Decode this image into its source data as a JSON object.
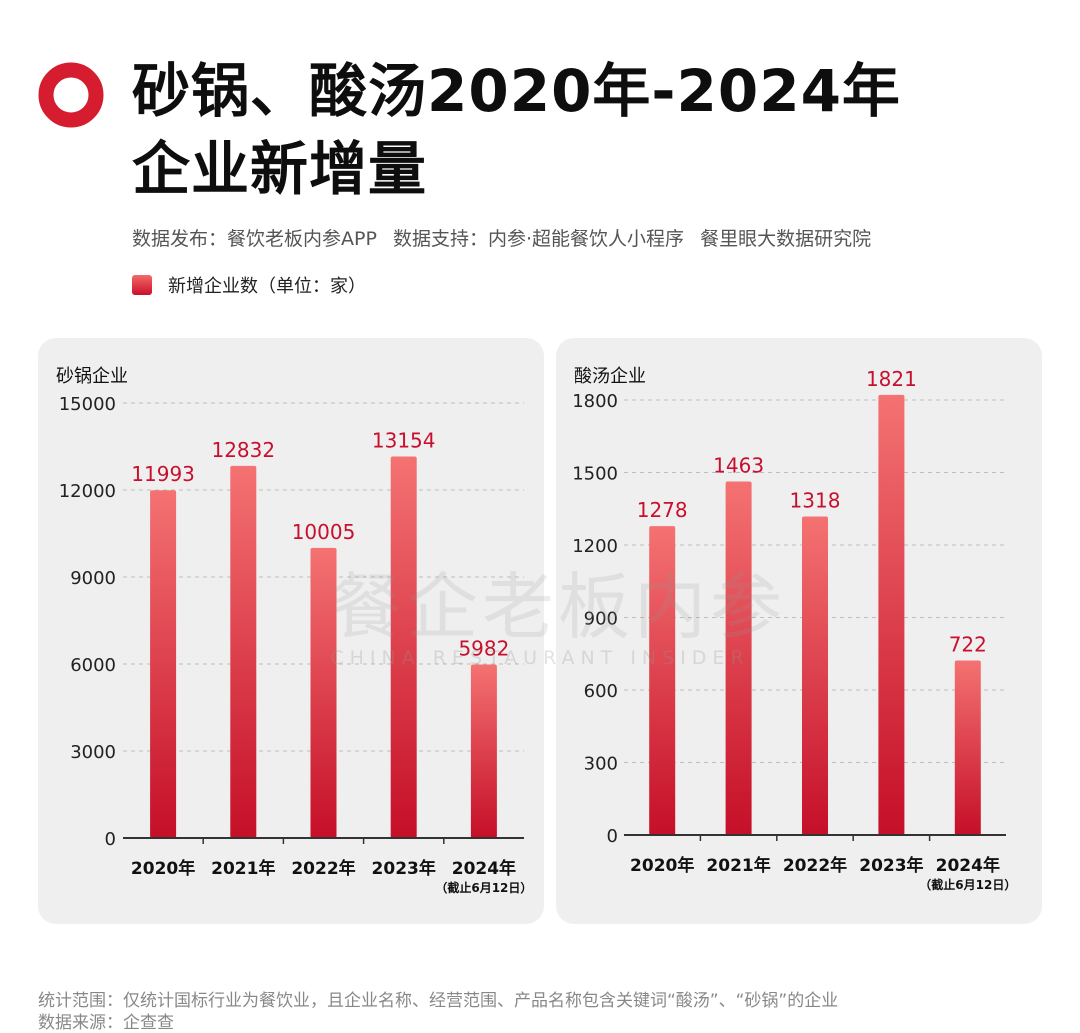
{
  "title": {
    "line1": "砂锅、酸汤2020年-2024年",
    "line2": "企业新增量"
  },
  "source": {
    "publisher": "数据发布：餐饮老板内参APP",
    "support": "数据支持：内参·超能餐饮人小程序",
    "institute": "餐里眼大数据研究院"
  },
  "legend": {
    "label": "新增企业数（单位：家）"
  },
  "watermark": {
    "main": "餐企老板内参",
    "sub": "CHINA RESTAURANT INSIDER"
  },
  "footnotes": {
    "scope": "统计范围：仅统计国标行业为餐饮业，且企业名称、经营范围、产品名称包含关键词“酸汤”、“砂锅”的企业",
    "source": "数据来源：企查查"
  },
  "colors": {
    "bar_top": "#f47272",
    "bar_bottom": "#c50f28",
    "value_label": "#c8102e",
    "accent": "#d51d2f"
  },
  "chart_data": [
    {
      "type": "bar",
      "title": "砂锅企业",
      "categories": [
        "2020年",
        "2021年",
        "2022年",
        "2023年",
        "2024年"
      ],
      "category_notes": [
        "",
        "",
        "",
        "",
        "（截止6月12日）"
      ],
      "values": [
        11993,
        12832,
        10005,
        13154,
        5982
      ],
      "ylim": [
        0,
        15000
      ],
      "yticks": [
        0,
        3000,
        6000,
        9000,
        12000,
        15000
      ],
      "grid": true
    },
    {
      "type": "bar",
      "title": "酸汤企业",
      "categories": [
        "2020年",
        "2021年",
        "2022年",
        "2023年",
        "2024年"
      ],
      "category_notes": [
        "",
        "",
        "",
        "",
        "（截止6月12日）"
      ],
      "values": [
        1278,
        1463,
        1318,
        1821,
        722
      ],
      "ylim": [
        0,
        1800
      ],
      "yticks": [
        0,
        300,
        600,
        900,
        1200,
        1500,
        1800
      ],
      "grid": true
    }
  ]
}
